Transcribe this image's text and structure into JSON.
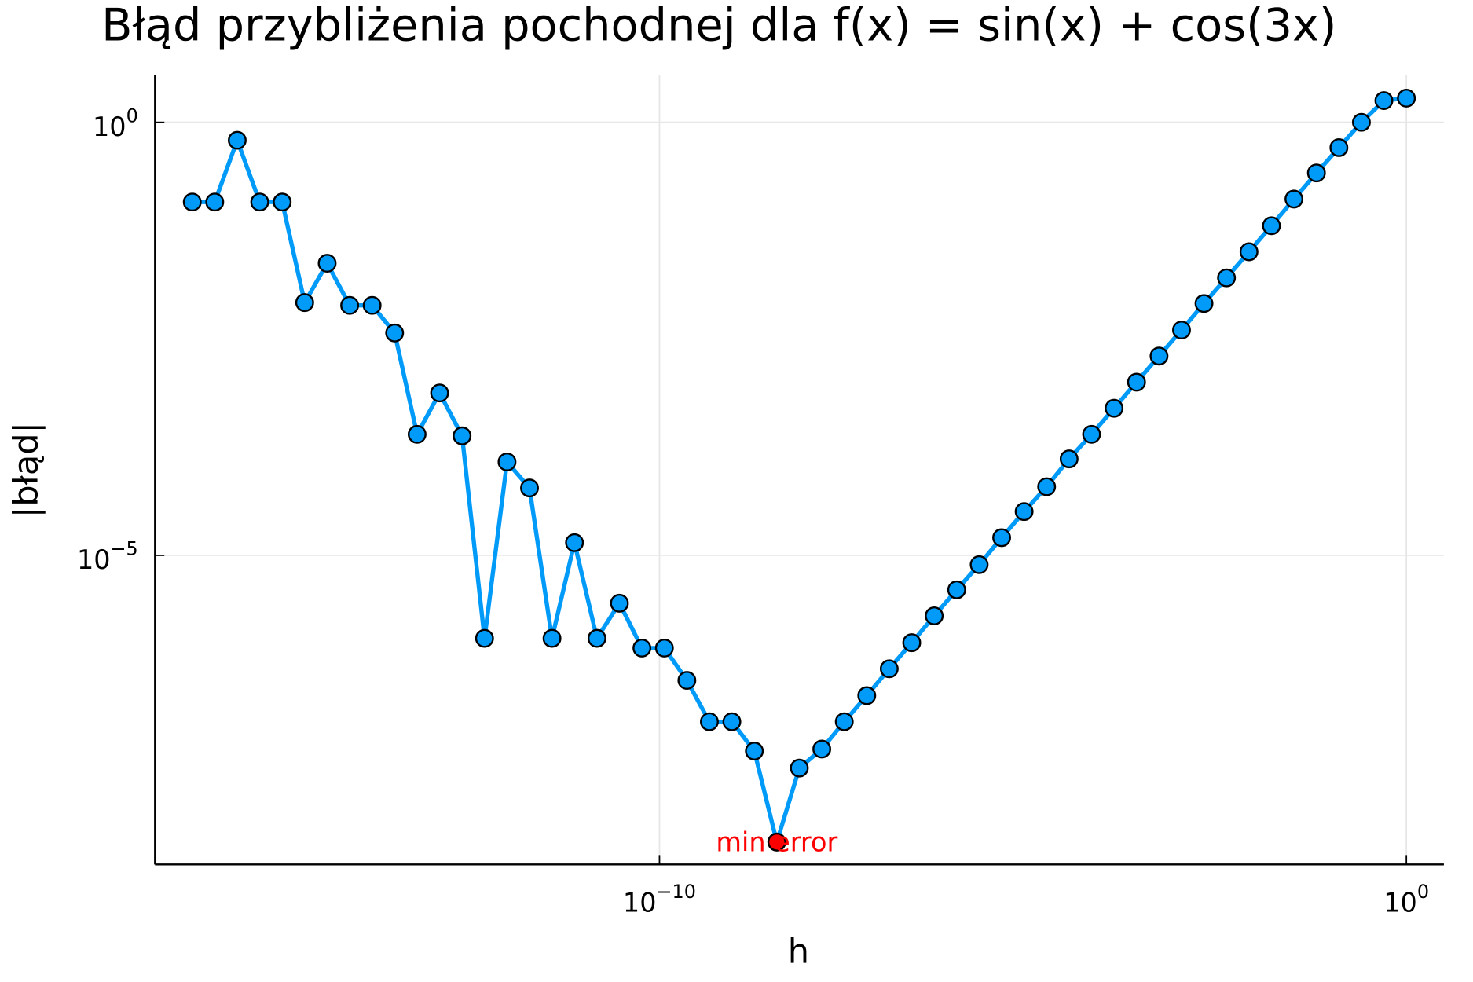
{
  "chart_data": {
    "type": "line",
    "title": "Błąd przybliżenia pochodnej dla f(x) = sin(x) + cos(3x)",
    "x_label": "h",
    "y_label": "|błąd|",
    "x_scale": "log",
    "y_scale": "log",
    "grid": true,
    "xlim": [
      1.76e-17,
      3.18
    ],
    "ylim": [
      2.7e-09,
      3.49
    ],
    "xticks": [
      {
        "value": 1e-10,
        "label": "10",
        "exponent": "−10"
      },
      {
        "value": 1,
        "label": "10",
        "exponent": "0"
      }
    ],
    "yticks": [
      {
        "value": 1e-05,
        "label": "10",
        "exponent": "−5"
      },
      {
        "value": 1,
        "label": "10",
        "exponent": "0"
      }
    ],
    "x": [
      5.551e-17,
      1.11e-16,
      2.22e-16,
      4.441e-16,
      8.882e-16,
      1.776e-15,
      3.553e-15,
      7.105e-15,
      1.421e-14,
      2.842e-14,
      5.684e-14,
      1.137e-13,
      2.274e-13,
      4.547e-13,
      9.095e-13,
      1.819e-12,
      3.638e-12,
      7.276e-12,
      1.455e-11,
      2.91e-11,
      5.821e-11,
      1.164e-10,
      2.328e-10,
      4.657e-10,
      9.313e-10,
      1.863e-09,
      3.725e-09,
      7.451e-09,
      1.49e-08,
      2.98e-08,
      5.96e-08,
      1.192e-07,
      2.384e-07,
      4.768e-07,
      9.537e-07,
      1.907e-06,
      3.815e-06,
      7.629e-06,
      1.526e-05,
      3.052e-05,
      6.104e-05,
      0.0001221,
      0.0002441,
      0.0004883,
      0.0009766,
      0.001953,
      0.003906,
      0.007813,
      0.01563,
      0.03125,
      0.0625,
      0.125,
      0.25,
      0.5,
      1
    ],
    "series": [
      {
        "color": "#009af9",
        "values": [
          0.12,
          0.12,
          0.62,
          0.12,
          0.12,
          0.0083,
          0.0236,
          0.0077,
          0.0077,
          0.0037,
          0.00025,
          0.00075,
          0.00024,
          1.1e-06,
          0.00012,
          6e-05,
          1.1e-06,
          1.4e-05,
          1.1e-06,
          2.8e-06,
          8.5e-07,
          8.5e-07,
          3.6e-07,
          1.2e-07,
          1.2e-07,
          5.5e-08,
          4.9e-09,
          3.5e-08,
          5.8e-08,
          1.2e-07,
          2.4e-07,
          4.9e-07,
          9.8e-07,
          2e-06,
          4e-06,
          7.8e-06,
          1.6e-05,
          3.2e-05,
          6.2e-05,
          0.00013,
          0.00025,
          0.0005,
          0.001,
          0.002,
          0.004,
          0.0081,
          0.016,
          0.032,
          0.064,
          0.13,
          0.26,
          0.51,
          1.0,
          1.78,
          1.9
        ]
      }
    ],
    "annotations": [
      {
        "text": "min error",
        "color": "#ff0000",
        "x": 3.725e-09,
        "y": 4.9e-09
      }
    ]
  }
}
